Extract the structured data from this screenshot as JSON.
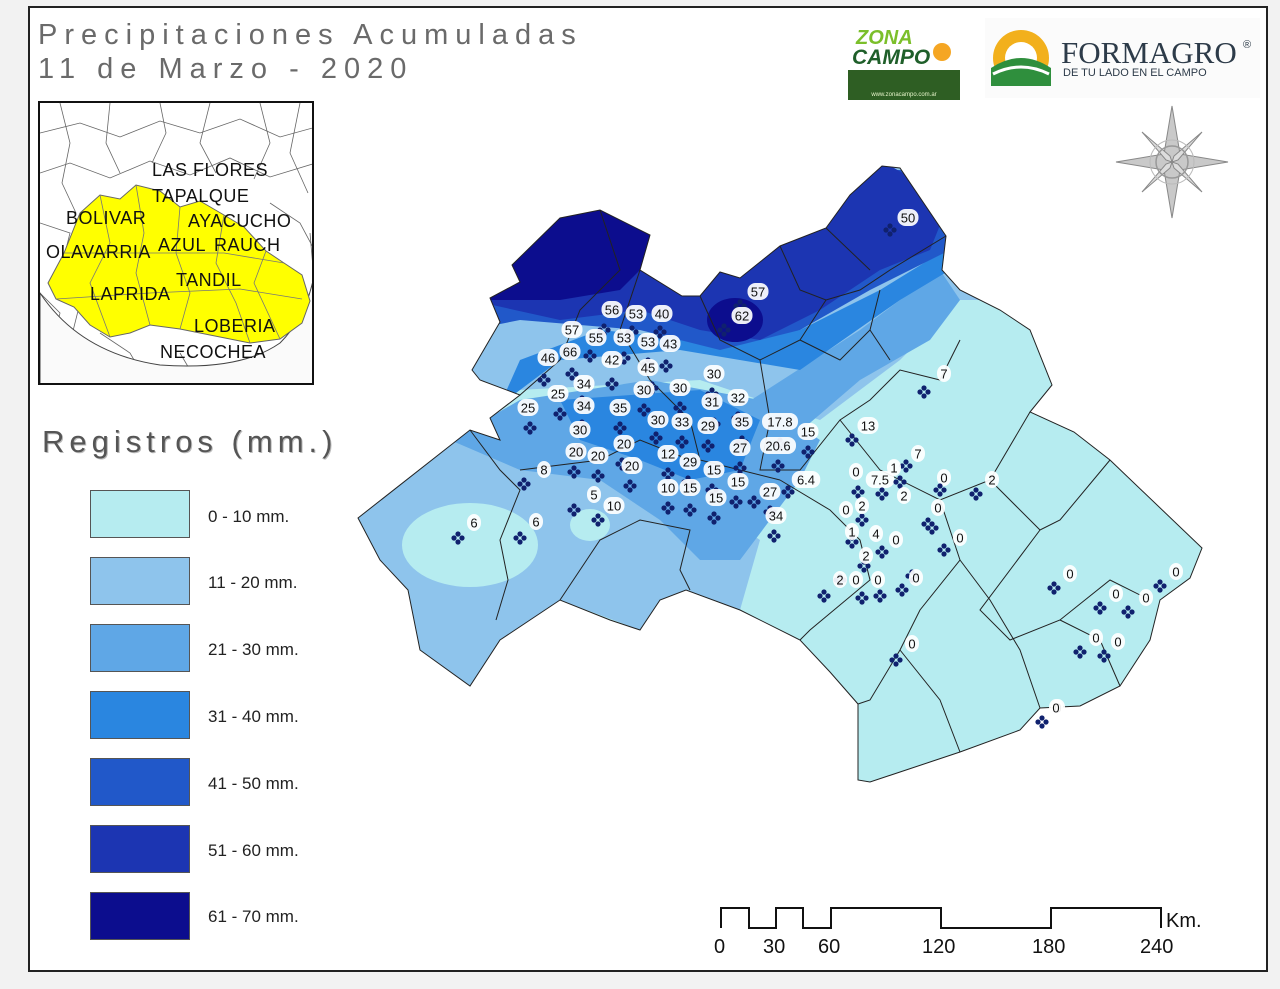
{
  "title": {
    "line1": "Precipitaciones Acumuladas",
    "line2": "11  de Marzo - 2020"
  },
  "inset": {
    "labels": [
      "LAS FLORES",
      "TAPALQUE",
      "BOLIVAR",
      "AYACUCHO",
      "OLAVARRIA",
      "AZUL",
      "RAUCH",
      "TANDIL",
      "LAPRIDA",
      "LOBERIA",
      "NECOCHEA"
    ],
    "highlight_color": "#ffff00"
  },
  "legend": {
    "title": "Registros (mm.)",
    "items": [
      {
        "label": "0 - 10 mm.",
        "color": "#b6ecf0"
      },
      {
        "label": "11 - 20 mm.",
        "color": "#8ec4ec"
      },
      {
        "label": "21 - 30 mm.",
        "color": "#5fa7e6"
      },
      {
        "label": "31 - 40 mm.",
        "color": "#2a86e0"
      },
      {
        "label": "41 - 50 mm.",
        "color": "#2158c9"
      },
      {
        "label": "51 - 60 mm.",
        "color": "#1c35b2"
      },
      {
        "label": "61 - 70 mm.",
        "color": "#0c0d8e"
      }
    ]
  },
  "scale_bar": {
    "ticks": [
      "0",
      "30",
      "60",
      "120",
      "180",
      "240"
    ],
    "unit": "Km."
  },
  "logos": {
    "zonacampo": {
      "line1": "ZONA",
      "line2": "CAMPO",
      "url": "www.zonacampo.com.ar"
    },
    "formagro": {
      "name": "FORMAGRO",
      "tagline": "DE TU LADO EN EL CAMPO",
      "mark": "®"
    }
  },
  "stations": [
    "50",
    "57",
    "62",
    "56",
    "53",
    "40",
    "57",
    "55",
    "53",
    "53",
    "43",
    "46",
    "66",
    "42",
    "30",
    "34",
    "45",
    "30",
    "30",
    "25",
    "25",
    "34",
    "35",
    "31",
    "32",
    "30",
    "30",
    "33",
    "29",
    "35",
    "17.8",
    "15",
    "20.6",
    "27",
    "20",
    "20",
    "20",
    "20",
    "12",
    "29",
    "15",
    "15",
    "27",
    "10",
    "15",
    "15",
    "34",
    "6.4",
    "8",
    "6",
    "6",
    "5",
    "10",
    "7",
    "13",
    "7",
    "0",
    "7.5",
    "1",
    "0",
    "2",
    "2",
    "0",
    "2",
    "1",
    "0",
    "0",
    "2",
    "4",
    "0",
    "2",
    "0",
    "0",
    "0",
    "0",
    "0",
    "0",
    "0",
    "0",
    "0",
    "0",
    "0",
    "0"
  ]
}
